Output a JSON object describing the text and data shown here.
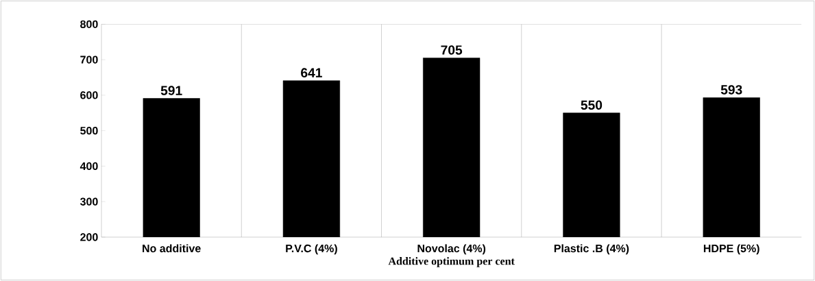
{
  "chart_data": {
    "type": "bar",
    "xlabel": "Additive optimum per cent",
    "categories": [
      "No additive",
      "P.V.C (4%)",
      "Novolac (4%)",
      "Plastic .B (4%)",
      "HDPE (5%)"
    ],
    "values": [
      591,
      641,
      705,
      550,
      593
    ],
    "color": "#000000",
    "ylim": [
      200,
      800
    ],
    "yticks": [
      200,
      300,
      400,
      500,
      600,
      700,
      800
    ],
    "grid": "x",
    "data_labels": true
  }
}
